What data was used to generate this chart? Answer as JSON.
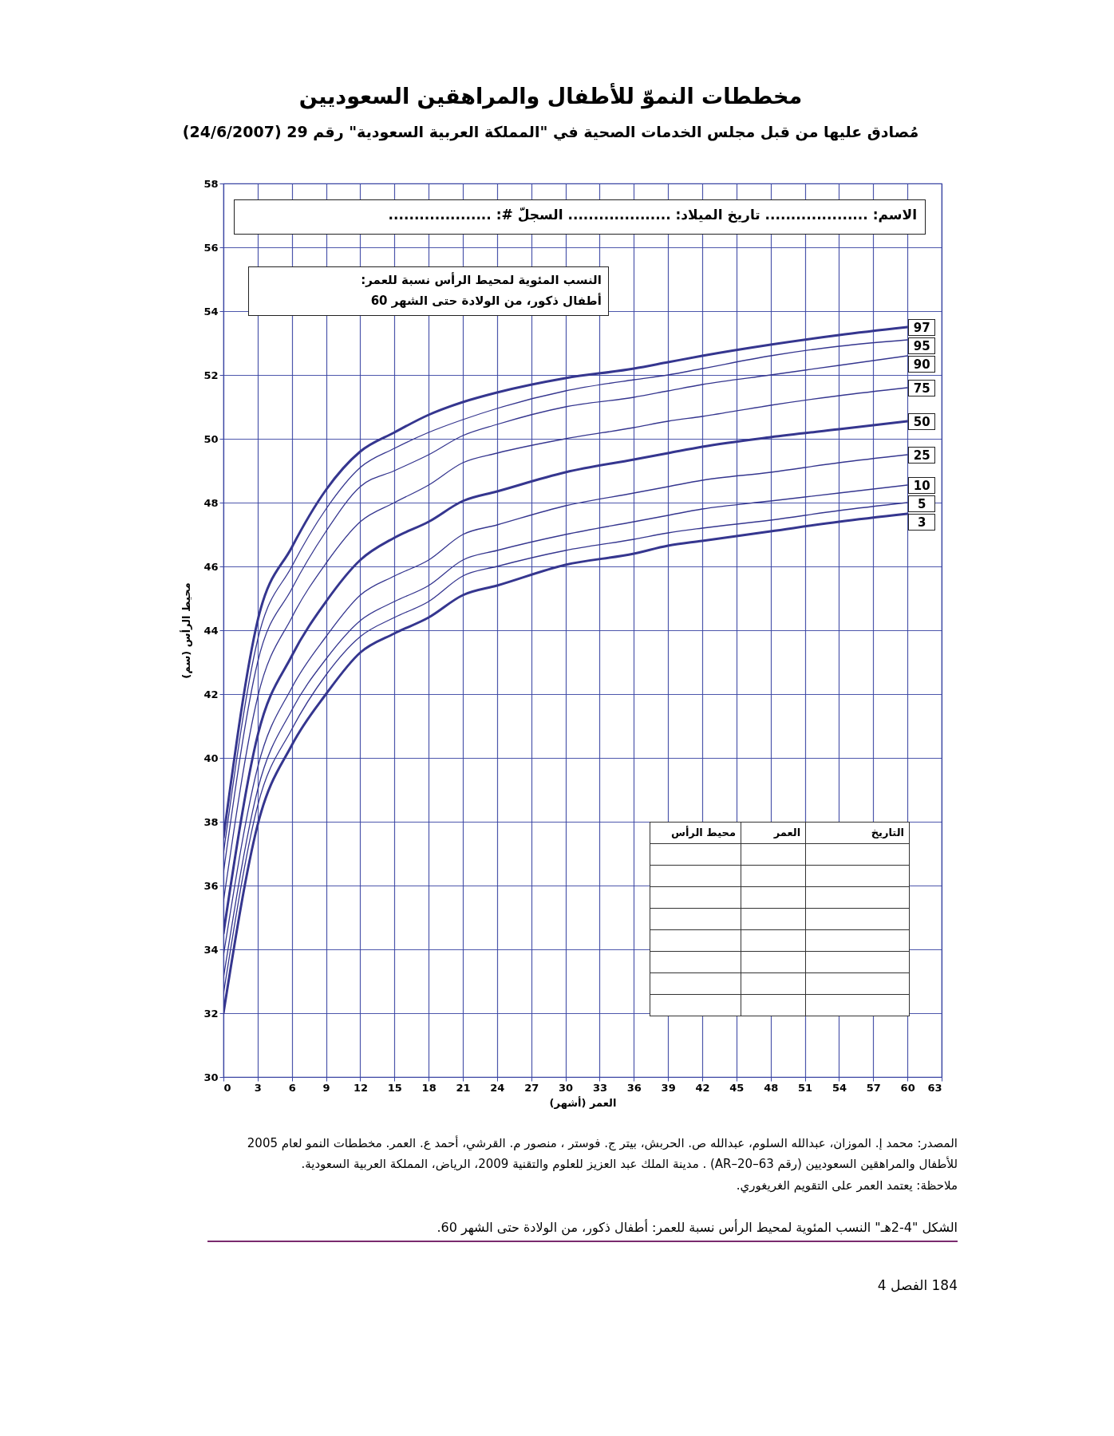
{
  "chart_data": {
    "type": "line",
    "title": "مخططات النموّ للأطفال والمراهقين السعوديين",
    "subtitle": "مُصادق عليها من قبل مجلس الخدمات الصحية في \"المملكة العربية السعودية\" رقم 29 (24/6/2007)",
    "xlabel": "العمر (أشهر)",
    "ylabel": "محيط الرأس (سم)",
    "x": [
      0,
      3,
      6,
      9,
      12,
      15,
      18,
      21,
      24,
      30,
      36,
      39,
      42,
      48,
      54,
      60
    ],
    "series": [
      {
        "name": "97",
        "color": "#35368f",
        "values": [
          37.5,
          44.3,
          46.6,
          48.4,
          49.6,
          50.2,
          50.75,
          51.15,
          51.45,
          51.9,
          52.2,
          52.4,
          52.6,
          52.95,
          53.25,
          53.5
        ]
      },
      {
        "name": "95",
        "color": "#35368f",
        "values": [
          37.0,
          43.7,
          46.0,
          47.8,
          49.1,
          49.7,
          50.2,
          50.6,
          50.95,
          51.5,
          51.85,
          52.0,
          52.2,
          52.6,
          52.9,
          53.1
        ]
      },
      {
        "name": "90",
        "color": "#35368f",
        "values": [
          36.4,
          43.0,
          45.3,
          47.1,
          48.5,
          49.0,
          49.5,
          50.1,
          50.45,
          51.0,
          51.3,
          51.5,
          51.7,
          52.0,
          52.3,
          52.6
        ]
      },
      {
        "name": "75",
        "color": "#35368f",
        "values": [
          35.5,
          41.9,
          44.4,
          46.1,
          47.4,
          48.0,
          48.55,
          49.25,
          49.55,
          50.0,
          50.35,
          50.55,
          50.7,
          51.05,
          51.35,
          51.6
        ]
      },
      {
        "name": "50",
        "color": "#35368f",
        "values": [
          34.5,
          40.7,
          43.2,
          44.9,
          46.2,
          46.9,
          47.4,
          48.05,
          48.35,
          48.95,
          49.35,
          49.55,
          49.75,
          50.05,
          50.3,
          50.55
        ]
      },
      {
        "name": "25",
        "color": "#35368f",
        "values": [
          33.8,
          39.7,
          42.2,
          43.8,
          45.1,
          45.7,
          46.2,
          47.0,
          47.3,
          47.9,
          48.3,
          48.5,
          48.7,
          48.95,
          49.25,
          49.5
        ]
      },
      {
        "name": "10",
        "color": "#35368f",
        "values": [
          33.1,
          39.0,
          41.5,
          43.1,
          44.3,
          44.9,
          45.4,
          46.2,
          46.5,
          47.0,
          47.4,
          47.6,
          47.8,
          48.05,
          48.3,
          48.55
        ]
      },
      {
        "name": "5",
        "color": "#35368f",
        "values": [
          32.6,
          38.5,
          40.9,
          42.6,
          43.8,
          44.4,
          44.9,
          45.7,
          46.0,
          46.5,
          46.85,
          47.05,
          47.2,
          47.45,
          47.75,
          48.0
        ]
      },
      {
        "name": "3",
        "color": "#35368f",
        "values": [
          32.0,
          37.9,
          40.4,
          42.0,
          43.3,
          43.9,
          44.4,
          45.1,
          45.4,
          46.05,
          46.4,
          46.65,
          46.8,
          47.1,
          47.4,
          47.65
        ]
      }
    ],
    "xlim": [
      0,
      63
    ],
    "xticks": [
      0,
      3,
      6,
      9,
      12,
      15,
      18,
      21,
      24,
      27,
      30,
      33,
      36,
      39,
      42,
      45,
      48,
      51,
      54,
      57,
      60,
      63
    ],
    "ylim": [
      30,
      58
    ],
    "yticks": [
      30,
      32,
      34,
      36,
      38,
      40,
      42,
      44,
      46,
      48,
      50,
      52,
      54,
      56,
      58
    ],
    "grid": true,
    "legend": false,
    "annotations": [
      "الاسم: .................... تاريخ الميلاد: .................... السجلّ #: ....................",
      "النسب المئوية لمحيط الرأس نسبة للعمر:",
      "أطفال ذكور، من الولادة حتى الشهر 60",
      "التاريخ",
      "العمر",
      "محيط الرأس",
      "المصدر: محمد إ. الموزان، عبدالله السلوم، عبدالله ص. الحربش، بيتر ج. فوستر ، منصور م. القرشي، أحمد ع. العمر. مخططات النمو لعام 2005 للأطفال والمراهقين السعوديين (رقم AR–20–63) . مدينة الملك عبد العزيز للعلوم والتقنية 2009، الرياض، المملكة العربية السعودية.",
      "ملاحظة: يعتمد العمر على التقويم الغريغوري.",
      "الشكل \"4-2هـ\" النسب المئوية لمحيط الرأس نسبة للعمر: أطفال ذكور، من الولادة حتى الشهر 60.",
      "184 الفصل 4"
    ]
  }
}
